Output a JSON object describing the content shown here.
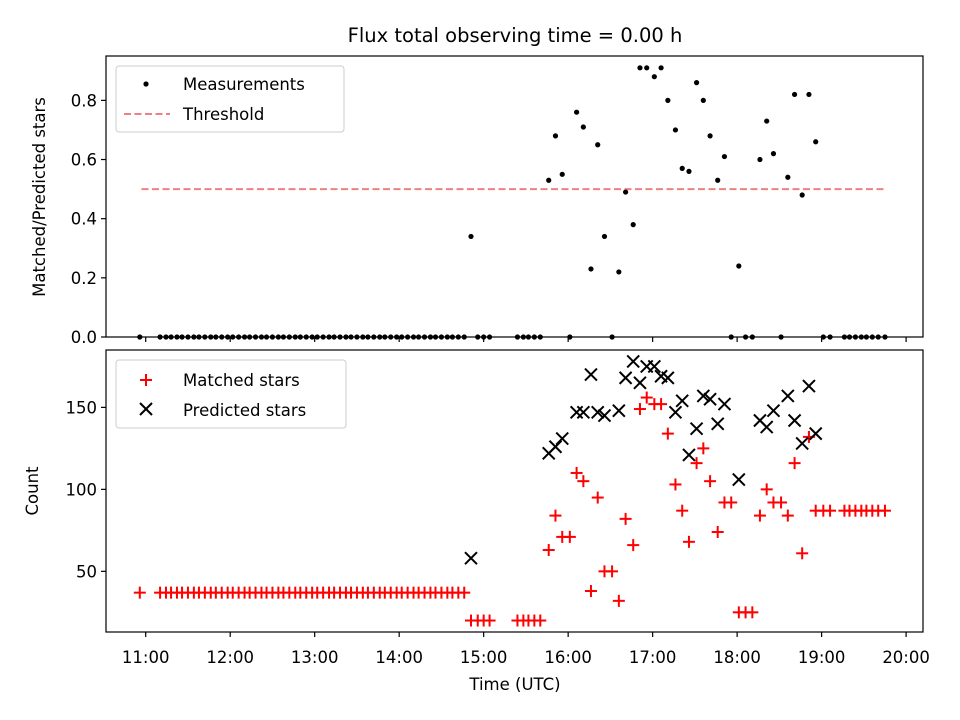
{
  "chart_data": [
    {
      "type": "scatter",
      "title": "Flux total observing time = 0.00 h",
      "xlabel": "",
      "ylabel": "Matched/Predicted stars",
      "ylim": [
        0,
        0.95
      ],
      "yticks": [
        0.0,
        0.2,
        0.4,
        0.6,
        0.8
      ],
      "ytick_labels": [
        "0.0",
        "0.2",
        "0.4",
        "0.6",
        "0.8"
      ],
      "xlim": [
        10.53,
        20.2
      ],
      "legend": {
        "placement": "top-left",
        "entries": [
          "Measurements",
          "Threshold"
        ]
      },
      "threshold": {
        "name": "Threshold",
        "y": 0.5,
        "x_range": [
          10.95,
          19.75
        ],
        "color": "#f08080"
      },
      "series": [
        {
          "name": "Measurements",
          "color": "#000000",
          "x": [
            10.93,
            11.17,
            11.24,
            11.3,
            11.37,
            11.43,
            11.5,
            11.57,
            11.63,
            11.7,
            11.77,
            11.83,
            11.9,
            11.97,
            12.03,
            12.1,
            12.17,
            12.23,
            12.3,
            12.37,
            12.43,
            12.5,
            12.57,
            12.63,
            12.7,
            12.77,
            12.83,
            12.9,
            12.97,
            13.03,
            13.1,
            13.17,
            13.23,
            13.3,
            13.37,
            13.43,
            13.5,
            13.57,
            13.63,
            13.7,
            13.77,
            13.83,
            13.9,
            13.97,
            14.03,
            14.1,
            14.17,
            14.23,
            14.3,
            14.37,
            14.43,
            14.5,
            14.57,
            14.63,
            14.7,
            14.77,
            14.85,
            14.93,
            15.0,
            15.07,
            15.4,
            15.47,
            15.53,
            15.6,
            15.67,
            15.77,
            15.85,
            15.93,
            16.02,
            16.1,
            16.18,
            16.27,
            16.35,
            16.43,
            16.52,
            16.6,
            16.68,
            16.77,
            16.85,
            16.93,
            17.02,
            17.1,
            17.18,
            17.27,
            17.35,
            17.43,
            17.52,
            17.6,
            17.68,
            17.77,
            17.85,
            17.93,
            18.02,
            18.1,
            18.18,
            18.27,
            18.35,
            18.43,
            18.52,
            18.6,
            18.68,
            18.77,
            18.85,
            18.93,
            19.02,
            19.1,
            19.27,
            19.33,
            19.4,
            19.47,
            19.53,
            19.6,
            19.67,
            19.75
          ],
          "y": [
            0.0,
            0.0,
            0.0,
            0.0,
            0.0,
            0.0,
            0.0,
            0.0,
            0.0,
            0.0,
            0.0,
            0.0,
            0.0,
            0.0,
            0.0,
            0.0,
            0.0,
            0.0,
            0.0,
            0.0,
            0.0,
            0.0,
            0.0,
            0.0,
            0.0,
            0.0,
            0.0,
            0.0,
            0.0,
            0.0,
            0.0,
            0.0,
            0.0,
            0.0,
            0.0,
            0.0,
            0.0,
            0.0,
            0.0,
            0.0,
            0.0,
            0.0,
            0.0,
            0.0,
            0.0,
            0.0,
            0.0,
            0.0,
            0.0,
            0.0,
            0.0,
            0.0,
            0.0,
            0.0,
            0.0,
            0.0,
            0.34,
            0.0,
            0.0,
            0.0,
            0.0,
            0.0,
            0.0,
            0.0,
            0.0,
            0.53,
            0.68,
            0.55,
            0.0,
            0.76,
            0.71,
            0.23,
            0.65,
            0.34,
            0.0,
            0.22,
            0.49,
            0.38,
            0.91,
            0.91,
            0.88,
            0.91,
            0.8,
            0.7,
            0.57,
            0.56,
            0.86,
            0.8,
            0.68,
            0.53,
            0.61,
            0.0,
            0.24,
            0.0,
            0.0,
            0.6,
            0.73,
            0.62,
            0.0,
            0.54,
            0.82,
            0.48,
            0.82,
            0.66,
            0.0,
            0.0,
            0.0,
            0.0,
            0.0,
            0.0,
            0.0,
            0.0,
            0.0,
            0.0
          ]
        }
      ]
    },
    {
      "type": "scatter",
      "title": "",
      "xlabel": "Time (UTC)",
      "ylabel": "Count",
      "ylim": [
        13,
        185
      ],
      "yticks": [
        50,
        100,
        150
      ],
      "ytick_labels": [
        "50",
        "100",
        "150"
      ],
      "xlim": [
        10.53,
        20.2
      ],
      "xticks": [
        11,
        12,
        13,
        14,
        15,
        16,
        17,
        18,
        19,
        20
      ],
      "xtick_labels": [
        "11:00",
        "12:00",
        "13:00",
        "14:00",
        "15:00",
        "16:00",
        "17:00",
        "18:00",
        "19:00",
        "20:00"
      ],
      "legend": {
        "placement": "top-left",
        "entries": [
          "Matched stars",
          "Predicted stars"
        ]
      },
      "series": [
        {
          "name": "Matched stars",
          "marker": "plus",
          "color": "#ff0000",
          "x": [
            10.93,
            11.17,
            11.24,
            11.3,
            11.37,
            11.43,
            11.5,
            11.57,
            11.63,
            11.7,
            11.77,
            11.83,
            11.9,
            11.97,
            12.03,
            12.1,
            12.17,
            12.23,
            12.3,
            12.37,
            12.43,
            12.5,
            12.57,
            12.63,
            12.7,
            12.77,
            12.83,
            12.9,
            12.97,
            13.03,
            13.1,
            13.17,
            13.23,
            13.3,
            13.37,
            13.43,
            13.5,
            13.57,
            13.63,
            13.7,
            13.77,
            13.83,
            13.9,
            13.97,
            14.03,
            14.1,
            14.17,
            14.23,
            14.3,
            14.37,
            14.43,
            14.5,
            14.57,
            14.63,
            14.7,
            14.77,
            14.85,
            14.93,
            15.0,
            15.07,
            15.4,
            15.47,
            15.53,
            15.6,
            15.67,
            15.77,
            15.85,
            15.93,
            16.02,
            16.1,
            16.18,
            16.27,
            16.35,
            16.43,
            16.52,
            16.6,
            16.68,
            16.77,
            16.85,
            16.93,
            17.02,
            17.1,
            17.18,
            17.27,
            17.35,
            17.43,
            17.52,
            17.6,
            17.68,
            17.77,
            17.85,
            17.93,
            18.02,
            18.1,
            18.18,
            18.27,
            18.35,
            18.43,
            18.52,
            18.6,
            18.68,
            18.77,
            18.85,
            18.93,
            19.02,
            19.1,
            19.27,
            19.33,
            19.4,
            19.47,
            19.53,
            19.6,
            19.67,
            19.75
          ],
          "y": [
            37,
            37,
            37,
            37,
            37,
            37,
            37,
            37,
            37,
            37,
            37,
            37,
            37,
            37,
            37,
            37,
            37,
            37,
            37,
            37,
            37,
            37,
            37,
            37,
            37,
            37,
            37,
            37,
            37,
            37,
            37,
            37,
            37,
            37,
            37,
            37,
            37,
            37,
            37,
            37,
            37,
            37,
            37,
            37,
            37,
            37,
            37,
            37,
            37,
            37,
            37,
            37,
            37,
            37,
            37,
            37,
            20,
            20,
            20,
            20,
            20,
            20,
            20,
            20,
            20,
            63,
            84,
            71,
            71,
            110,
            105,
            38,
            95,
            50,
            50,
            32,
            82,
            66,
            149,
            156,
            152,
            152,
            134,
            103,
            87,
            68,
            116,
            125,
            105,
            74,
            92,
            92,
            25,
            25,
            25,
            84,
            100,
            92,
            92,
            84,
            116,
            61,
            132,
            87,
            87,
            87,
            87,
            87,
            87,
            87,
            87,
            87,
            87,
            87
          ]
        },
        {
          "name": "Predicted stars",
          "marker": "x",
          "color": "#000000",
          "x": [
            14.85,
            15.77,
            15.85,
            15.93,
            16.1,
            16.18,
            16.27,
            16.35,
            16.43,
            16.6,
            16.68,
            16.77,
            16.85,
            16.93,
            17.02,
            17.1,
            17.18,
            17.27,
            17.35,
            17.43,
            17.52,
            17.6,
            17.68,
            17.77,
            17.85,
            18.02,
            18.27,
            18.35,
            18.43,
            18.6,
            18.68,
            18.77,
            18.85,
            18.93
          ],
          "y": [
            58,
            122,
            126,
            131,
            147,
            147,
            170,
            147,
            145,
            148,
            168,
            178,
            165,
            175,
            175,
            169,
            168,
            147,
            154,
            121,
            137,
            157,
            155,
            140,
            152,
            106,
            142,
            138,
            148,
            157,
            142,
            128,
            163,
            134
          ]
        }
      ]
    }
  ]
}
